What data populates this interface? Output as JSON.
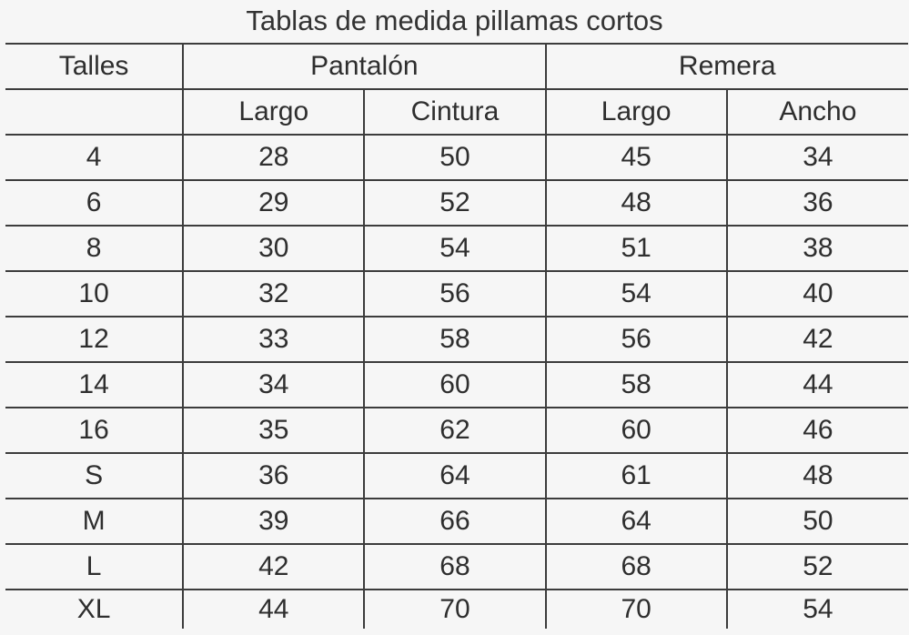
{
  "title": "Tablas de medida pillamas cortos",
  "headers": {
    "talles": "Talles",
    "pantalon": "Pantalón",
    "remera": "Remera",
    "pantalon_largo": "Largo",
    "pantalon_cintura": "Cintura",
    "remera_largo": "Largo",
    "remera_ancho": "Ancho"
  },
  "rows": [
    {
      "talle": "4",
      "pantalon_largo": "28",
      "pantalon_cintura": "50",
      "remera_largo": "45",
      "remera_ancho": "34"
    },
    {
      "talle": "6",
      "pantalon_largo": "29",
      "pantalon_cintura": "52",
      "remera_largo": "48",
      "remera_ancho": "36"
    },
    {
      "talle": "8",
      "pantalon_largo": "30",
      "pantalon_cintura": "54",
      "remera_largo": "51",
      "remera_ancho": "38"
    },
    {
      "talle": "10",
      "pantalon_largo": "32",
      "pantalon_cintura": "56",
      "remera_largo": "54",
      "remera_ancho": "40"
    },
    {
      "talle": "12",
      "pantalon_largo": "33",
      "pantalon_cintura": "58",
      "remera_largo": "56",
      "remera_ancho": "42"
    },
    {
      "talle": "14",
      "pantalon_largo": "34",
      "pantalon_cintura": "60",
      "remera_largo": "58",
      "remera_ancho": "44"
    },
    {
      "talle": "16",
      "pantalon_largo": "35",
      "pantalon_cintura": "62",
      "remera_largo": "60",
      "remera_ancho": "46"
    },
    {
      "talle": "S",
      "pantalon_largo": "36",
      "pantalon_cintura": "64",
      "remera_largo": "61",
      "remera_ancho": "48"
    },
    {
      "talle": "M",
      "pantalon_largo": "39",
      "pantalon_cintura": "66",
      "remera_largo": "64",
      "remera_ancho": "50"
    },
    {
      "talle": "L",
      "pantalon_largo": "42",
      "pantalon_cintura": "68",
      "remera_largo": "68",
      "remera_ancho": "52"
    },
    {
      "talle": "XL",
      "pantalon_largo": "44",
      "pantalon_cintura": "70",
      "remera_largo": "70",
      "remera_ancho": "54"
    }
  ]
}
